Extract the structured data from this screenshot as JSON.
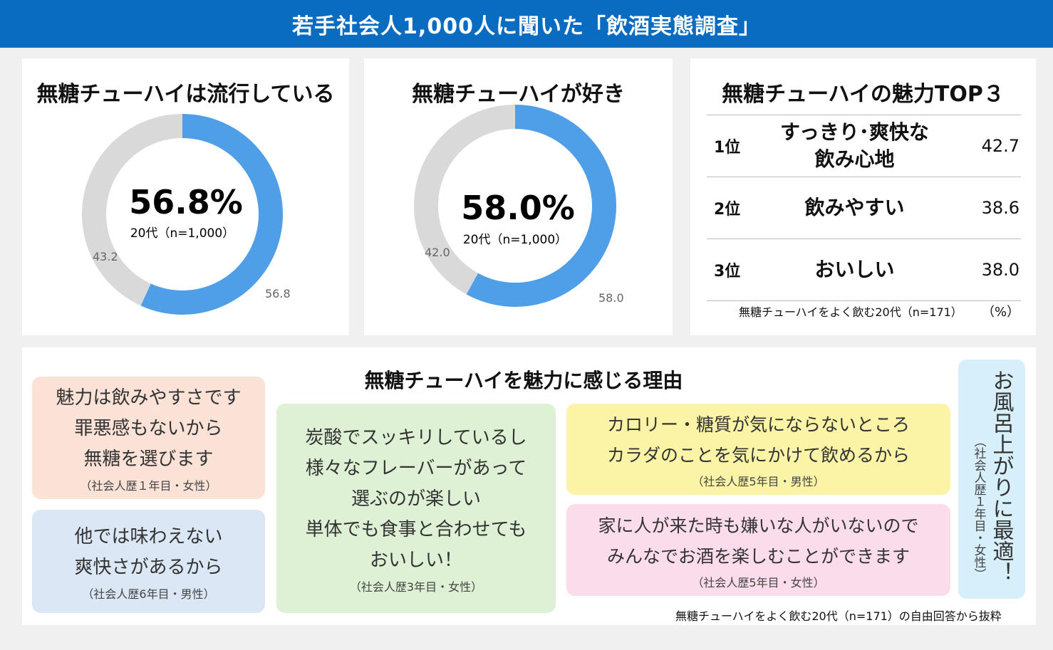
{
  "header": {
    "title": "若手社会人1,000人に聞いた「飲酒実態調査」"
  },
  "colors": {
    "header": "#0a6cc0",
    "yes": "#4f9fe8",
    "no": "#d9d9d9"
  },
  "chart_data": [
    {
      "type": "pie",
      "title": "無糖チューハイは流行している",
      "center_value": "56.8%",
      "center_note": "20代（n=1,000）",
      "slices": [
        {
          "value": 56.8,
          "label": "56.8",
          "color": "#4f9fe8"
        },
        {
          "value": 43.2,
          "label": "43.2",
          "color": "#d9d9d9"
        }
      ]
    },
    {
      "type": "pie",
      "title": "無糖チューハイが好き",
      "center_value": "58.0%",
      "center_note": "20代（n=1,000）",
      "slices": [
        {
          "value": 58.0,
          "label": "58.0",
          "color": "#4f9fe8"
        },
        {
          "value": 42.0,
          "label": "42.0",
          "color": "#d9d9d9"
        }
      ]
    },
    {
      "type": "table",
      "title": "無糖チューハイの魅力TOP３",
      "rows": [
        {
          "rank": "1位",
          "item": "すっきり･爽快な\n飲み心地",
          "value": "42.7"
        },
        {
          "rank": "2位",
          "item": "飲みやすい",
          "value": "38.6"
        },
        {
          "rank": "3位",
          "item": "おいしい",
          "value": "38.0"
        }
      ],
      "note": "無糖チューハイをよく飲む20代（n=171）",
      "unit": "（%）"
    }
  ],
  "reasons": {
    "title": "無糖チューハイを魅力に感じる理由",
    "items": [
      {
        "text": "魅力は飲みやすさです\n罪悪感もないから\n無糖を選びます",
        "who": "（社会人歴１年目・女性）",
        "color": "#fae2d7"
      },
      {
        "text": "他では味わえない\n爽快さがあるから",
        "who": "（社会人歴6年目・男性）",
        "color": "#dbe7f5"
      },
      {
        "text": "炭酸でスッキリしているし\n様々なフレーバーがあって\n選ぶのが楽しい\n単体でも食事と合わせても\nおいしい！",
        "who": "（社会人歴3年目・女性）",
        "color": "#def1d5"
      },
      {
        "text": "カロリー・糖質が気にならないところ\nカラダのことを気にかけて飲めるから",
        "who": "（社会人歴5年目・男性）",
        "color": "#fbf3a6"
      },
      {
        "text": "家に人が来た時も嫌いな人がいないので\nみんなでお酒を楽しむことができます",
        "who": "（社会人歴5年目・女性）",
        "color": "#fbdcea"
      },
      {
        "text": "お風呂上がりに最適！",
        "who": "（社会人歴１年目・女性）",
        "color": "#d6effb"
      }
    ],
    "footnote": "無糖チューハイをよく飲む20代（n=171）の自由回答から抜粋"
  }
}
